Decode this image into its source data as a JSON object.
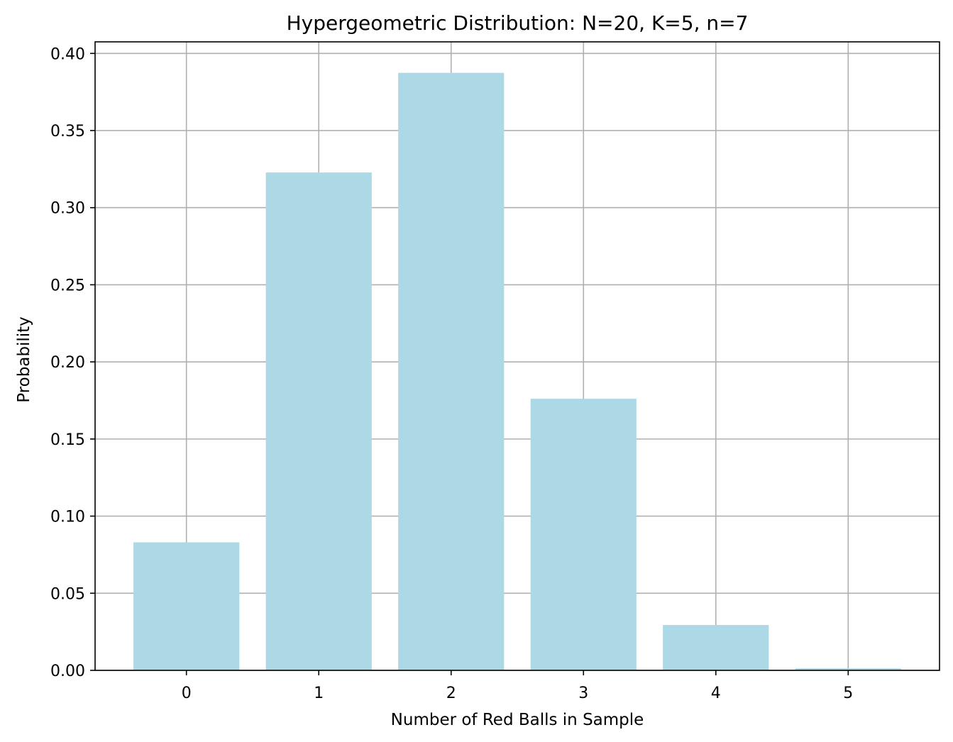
{
  "chart_data": {
    "type": "bar",
    "title": "Hypergeometric Distribution: N=20, K=5, n=7",
    "xlabel": "Number of Red Balls in Sample",
    "ylabel": "Probability",
    "categories": [
      "0",
      "1",
      "2",
      "3",
      "4",
      "5"
    ],
    "values": [
      0.083,
      0.3228,
      0.3874,
      0.1761,
      0.0294,
      0.0013
    ],
    "ylim": [
      0,
      0.4075
    ],
    "xlim": [
      -0.69,
      5.69
    ],
    "yticks": [
      0.0,
      0.05,
      0.1,
      0.15,
      0.2,
      0.25,
      0.3,
      0.35,
      0.4
    ],
    "ytick_labels": [
      "0.00",
      "0.05",
      "0.10",
      "0.15",
      "0.20",
      "0.25",
      "0.30",
      "0.35",
      "0.40"
    ],
    "grid": true,
    "colors": {
      "bar": "#add8e6"
    }
  }
}
